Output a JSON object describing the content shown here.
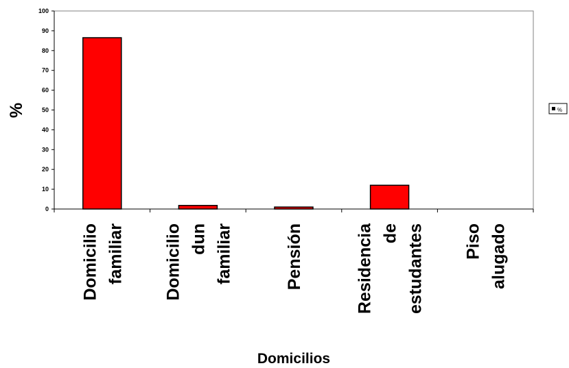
{
  "chart_data": {
    "type": "bar",
    "categories": [
      [
        "Domicilio",
        "familiar"
      ],
      [
        "Domicilio",
        "dun",
        "familiar"
      ],
      [
        "Pensión"
      ],
      [
        "Residencia",
        "de",
        "estudantes"
      ],
      [
        "Piso",
        "alugado"
      ]
    ],
    "series": [
      {
        "name": "%",
        "values": [
          86.5,
          1.8,
          1.0,
          12.0,
          0
        ]
      }
    ],
    "xlabel": "Domicilios",
    "ylabel": "%",
    "ylim": [
      0,
      100
    ],
    "yticks": [
      "0",
      "10",
      "20",
      "30",
      "40",
      "50",
      "60",
      "70",
      "80",
      "90",
      "100"
    ],
    "grid": false,
    "legend": "right",
    "colors": {
      "bar": "#ff0000",
      "bar_stroke": "#000000",
      "axis": "#000000",
      "plot_border": "#808080"
    }
  }
}
